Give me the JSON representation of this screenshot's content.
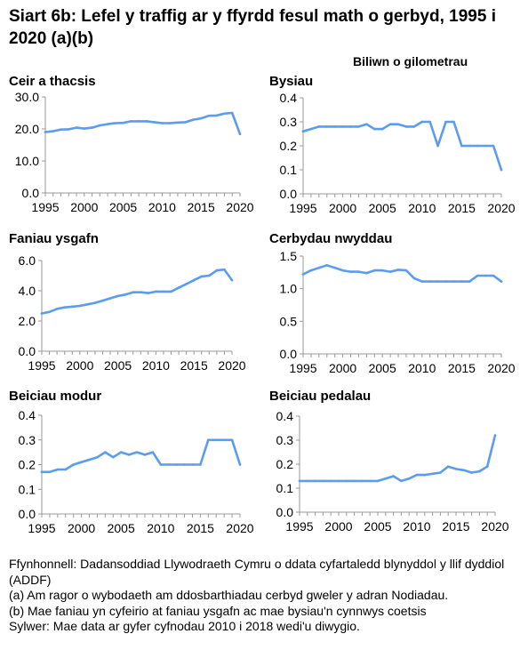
{
  "title": "Siart 6b: Lefel y traffig ar y ffyrdd fesul math o gerbyd, 1995 i 2020 (a)(b)",
  "unit_label": "Biliwn o gilometrau",
  "colors": {
    "line": "#5b9cee",
    "axis": "#999999",
    "text": "#000000"
  },
  "chart_data": [
    {
      "type": "line",
      "title": "Ceir a thacsis",
      "x": [
        1995,
        1996,
        1997,
        1998,
        1999,
        2000,
        2001,
        2002,
        2003,
        2004,
        2005,
        2006,
        2007,
        2008,
        2009,
        2010,
        2011,
        2012,
        2013,
        2014,
        2015,
        2016,
        2017,
        2018,
        2019,
        2020
      ],
      "values": [
        19.0,
        19.3,
        19.8,
        19.9,
        20.4,
        20.1,
        20.4,
        21.1,
        21.5,
        21.8,
        21.9,
        22.4,
        22.4,
        22.4,
        22.1,
        21.8,
        21.8,
        22.0,
        22.1,
        22.9,
        23.3,
        24.1,
        24.2,
        24.8,
        25.0,
        18.4
      ],
      "ylim": [
        0,
        30
      ],
      "yticks": [
        "0.0",
        "10.0",
        "20.0",
        "30.0"
      ],
      "yticks_values": [
        0,
        10,
        20,
        30
      ],
      "xticks": [
        "1995",
        "2000",
        "2005",
        "2010",
        "2015",
        "2020"
      ]
    },
    {
      "type": "line",
      "title": "Bysiau",
      "x": [
        1995,
        1996,
        1997,
        1998,
        1999,
        2000,
        2001,
        2002,
        2003,
        2004,
        2005,
        2006,
        2007,
        2008,
        2009,
        2010,
        2011,
        2012,
        2013,
        2014,
        2015,
        2016,
        2017,
        2018,
        2019,
        2020
      ],
      "values": [
        0.26,
        0.27,
        0.28,
        0.28,
        0.28,
        0.28,
        0.28,
        0.28,
        0.29,
        0.27,
        0.27,
        0.29,
        0.29,
        0.28,
        0.28,
        0.3,
        0.3,
        0.2,
        0.3,
        0.3,
        0.2,
        0.2,
        0.2,
        0.2,
        0.2,
        0.1
      ],
      "ylim": [
        0,
        0.4
      ],
      "yticks": [
        "0.0",
        "0.1",
        "0.2",
        "0.3",
        "0.4"
      ],
      "yticks_values": [
        0,
        0.1,
        0.2,
        0.3,
        0.4
      ],
      "xticks": [
        "1995",
        "2000",
        "2005",
        "2010",
        "2015",
        "2020"
      ]
    },
    {
      "type": "line",
      "title": "Faniau ysgafn",
      "x": [
        1995,
        1996,
        1997,
        1998,
        1999,
        2000,
        2001,
        2002,
        2003,
        2004,
        2005,
        2006,
        2007,
        2008,
        2009,
        2010,
        2011,
        2012,
        2013,
        2014,
        2015,
        2016,
        2017,
        2018,
        2019,
        2020
      ],
      "values": [
        2.5,
        2.6,
        2.8,
        2.9,
        2.95,
        3.0,
        3.1,
        3.2,
        3.35,
        3.5,
        3.65,
        3.75,
        3.9,
        3.9,
        3.85,
        3.95,
        3.95,
        3.95,
        4.2,
        4.45,
        4.7,
        4.95,
        5.0,
        5.35,
        5.4,
        4.7
      ],
      "ylim": [
        0,
        6
      ],
      "yticks": [
        "0.0",
        "2.0",
        "4.0",
        "6.0"
      ],
      "yticks_values": [
        0,
        2,
        4,
        6
      ],
      "xticks": [
        "1995",
        "2000",
        "2005",
        "2010",
        "2015",
        "2020"
      ]
    },
    {
      "type": "line",
      "title": "Cerbydau nwyddau",
      "x": [
        1995,
        1996,
        1997,
        1998,
        1999,
        2000,
        2001,
        2002,
        2003,
        2004,
        2005,
        2006,
        2007,
        2008,
        2009,
        2010,
        2011,
        2012,
        2013,
        2014,
        2015,
        2016,
        2017,
        2018,
        2019,
        2020
      ],
      "values": [
        1.22,
        1.28,
        1.32,
        1.36,
        1.32,
        1.28,
        1.26,
        1.26,
        1.24,
        1.28,
        1.28,
        1.26,
        1.29,
        1.28,
        1.16,
        1.11,
        1.11,
        1.11,
        1.11,
        1.11,
        1.11,
        1.11,
        1.2,
        1.2,
        1.2,
        1.11
      ],
      "ylim": [
        0,
        1.5
      ],
      "yticks": [
        "0.0",
        "0.5",
        "1.0",
        "1.5"
      ],
      "yticks_values": [
        0,
        0.5,
        1.0,
        1.5
      ],
      "xticks": [
        "1995",
        "2000",
        "2005",
        "2010",
        "2015",
        "2020"
      ]
    },
    {
      "type": "line",
      "title": "Beiciau modur",
      "x": [
        1995,
        1996,
        1997,
        1998,
        1999,
        2000,
        2001,
        2002,
        2003,
        2004,
        2005,
        2006,
        2007,
        2008,
        2009,
        2010,
        2011,
        2012,
        2013,
        2014,
        2015,
        2016,
        2017,
        2018,
        2019,
        2020
      ],
      "values": [
        0.17,
        0.17,
        0.18,
        0.18,
        0.2,
        0.21,
        0.22,
        0.23,
        0.25,
        0.23,
        0.25,
        0.24,
        0.25,
        0.24,
        0.25,
        0.2,
        0.2,
        0.2,
        0.2,
        0.2,
        0.2,
        0.3,
        0.3,
        0.3,
        0.3,
        0.2
      ],
      "ylim": [
        0,
        0.4
      ],
      "yticks": [
        "0.0",
        "0.1",
        "0.2",
        "0.3",
        "0.4"
      ],
      "yticks_values": [
        0,
        0.1,
        0.2,
        0.3,
        0.4
      ],
      "xticks": [
        "1995",
        "2000",
        "2005",
        "2010",
        "2015",
        "2020"
      ]
    },
    {
      "type": "line",
      "title": "Beiciau pedalau",
      "x": [
        1995,
        1996,
        1997,
        1998,
        1999,
        2000,
        2001,
        2002,
        2003,
        2004,
        2005,
        2006,
        2007,
        2008,
        2009,
        2010,
        2011,
        2012,
        2013,
        2014,
        2015,
        2016,
        2017,
        2018,
        2019,
        2020
      ],
      "values": [
        0.13,
        0.13,
        0.13,
        0.13,
        0.13,
        0.13,
        0.13,
        0.13,
        0.13,
        0.13,
        0.13,
        0.14,
        0.15,
        0.13,
        0.14,
        0.155,
        0.155,
        0.16,
        0.165,
        0.19,
        0.18,
        0.175,
        0.165,
        0.17,
        0.19,
        0.32
      ],
      "ylim": [
        0,
        0.4
      ],
      "yticks": [
        "0.0",
        "0.1",
        "0.2",
        "0.3",
        "0.4"
      ],
      "yticks_values": [
        0,
        0.1,
        0.2,
        0.3,
        0.4
      ],
      "xticks": [
        "1995",
        "2000",
        "2005",
        "2010",
        "2015",
        "2020"
      ]
    }
  ],
  "footer": {
    "source": "Ffynhonnell: Dadansoddiad Llywodraeth Cymru o ddata cyfartaledd blynyddol y llif dyddiol (ADDF)",
    "note_a": "(a) Am ragor o wybodaeth am ddosbarthiadau cerbyd gweler y adran Nodiadau.",
    "note_b": "(b) Mae faniau yn cyfeirio at faniau ysgafn ac mae bysiau'n cynnwys coetsis",
    "note_c": "Sylwer: Mae data ar gyfer cyfnodau 2010 i 2018 wedi'u diwygio."
  }
}
